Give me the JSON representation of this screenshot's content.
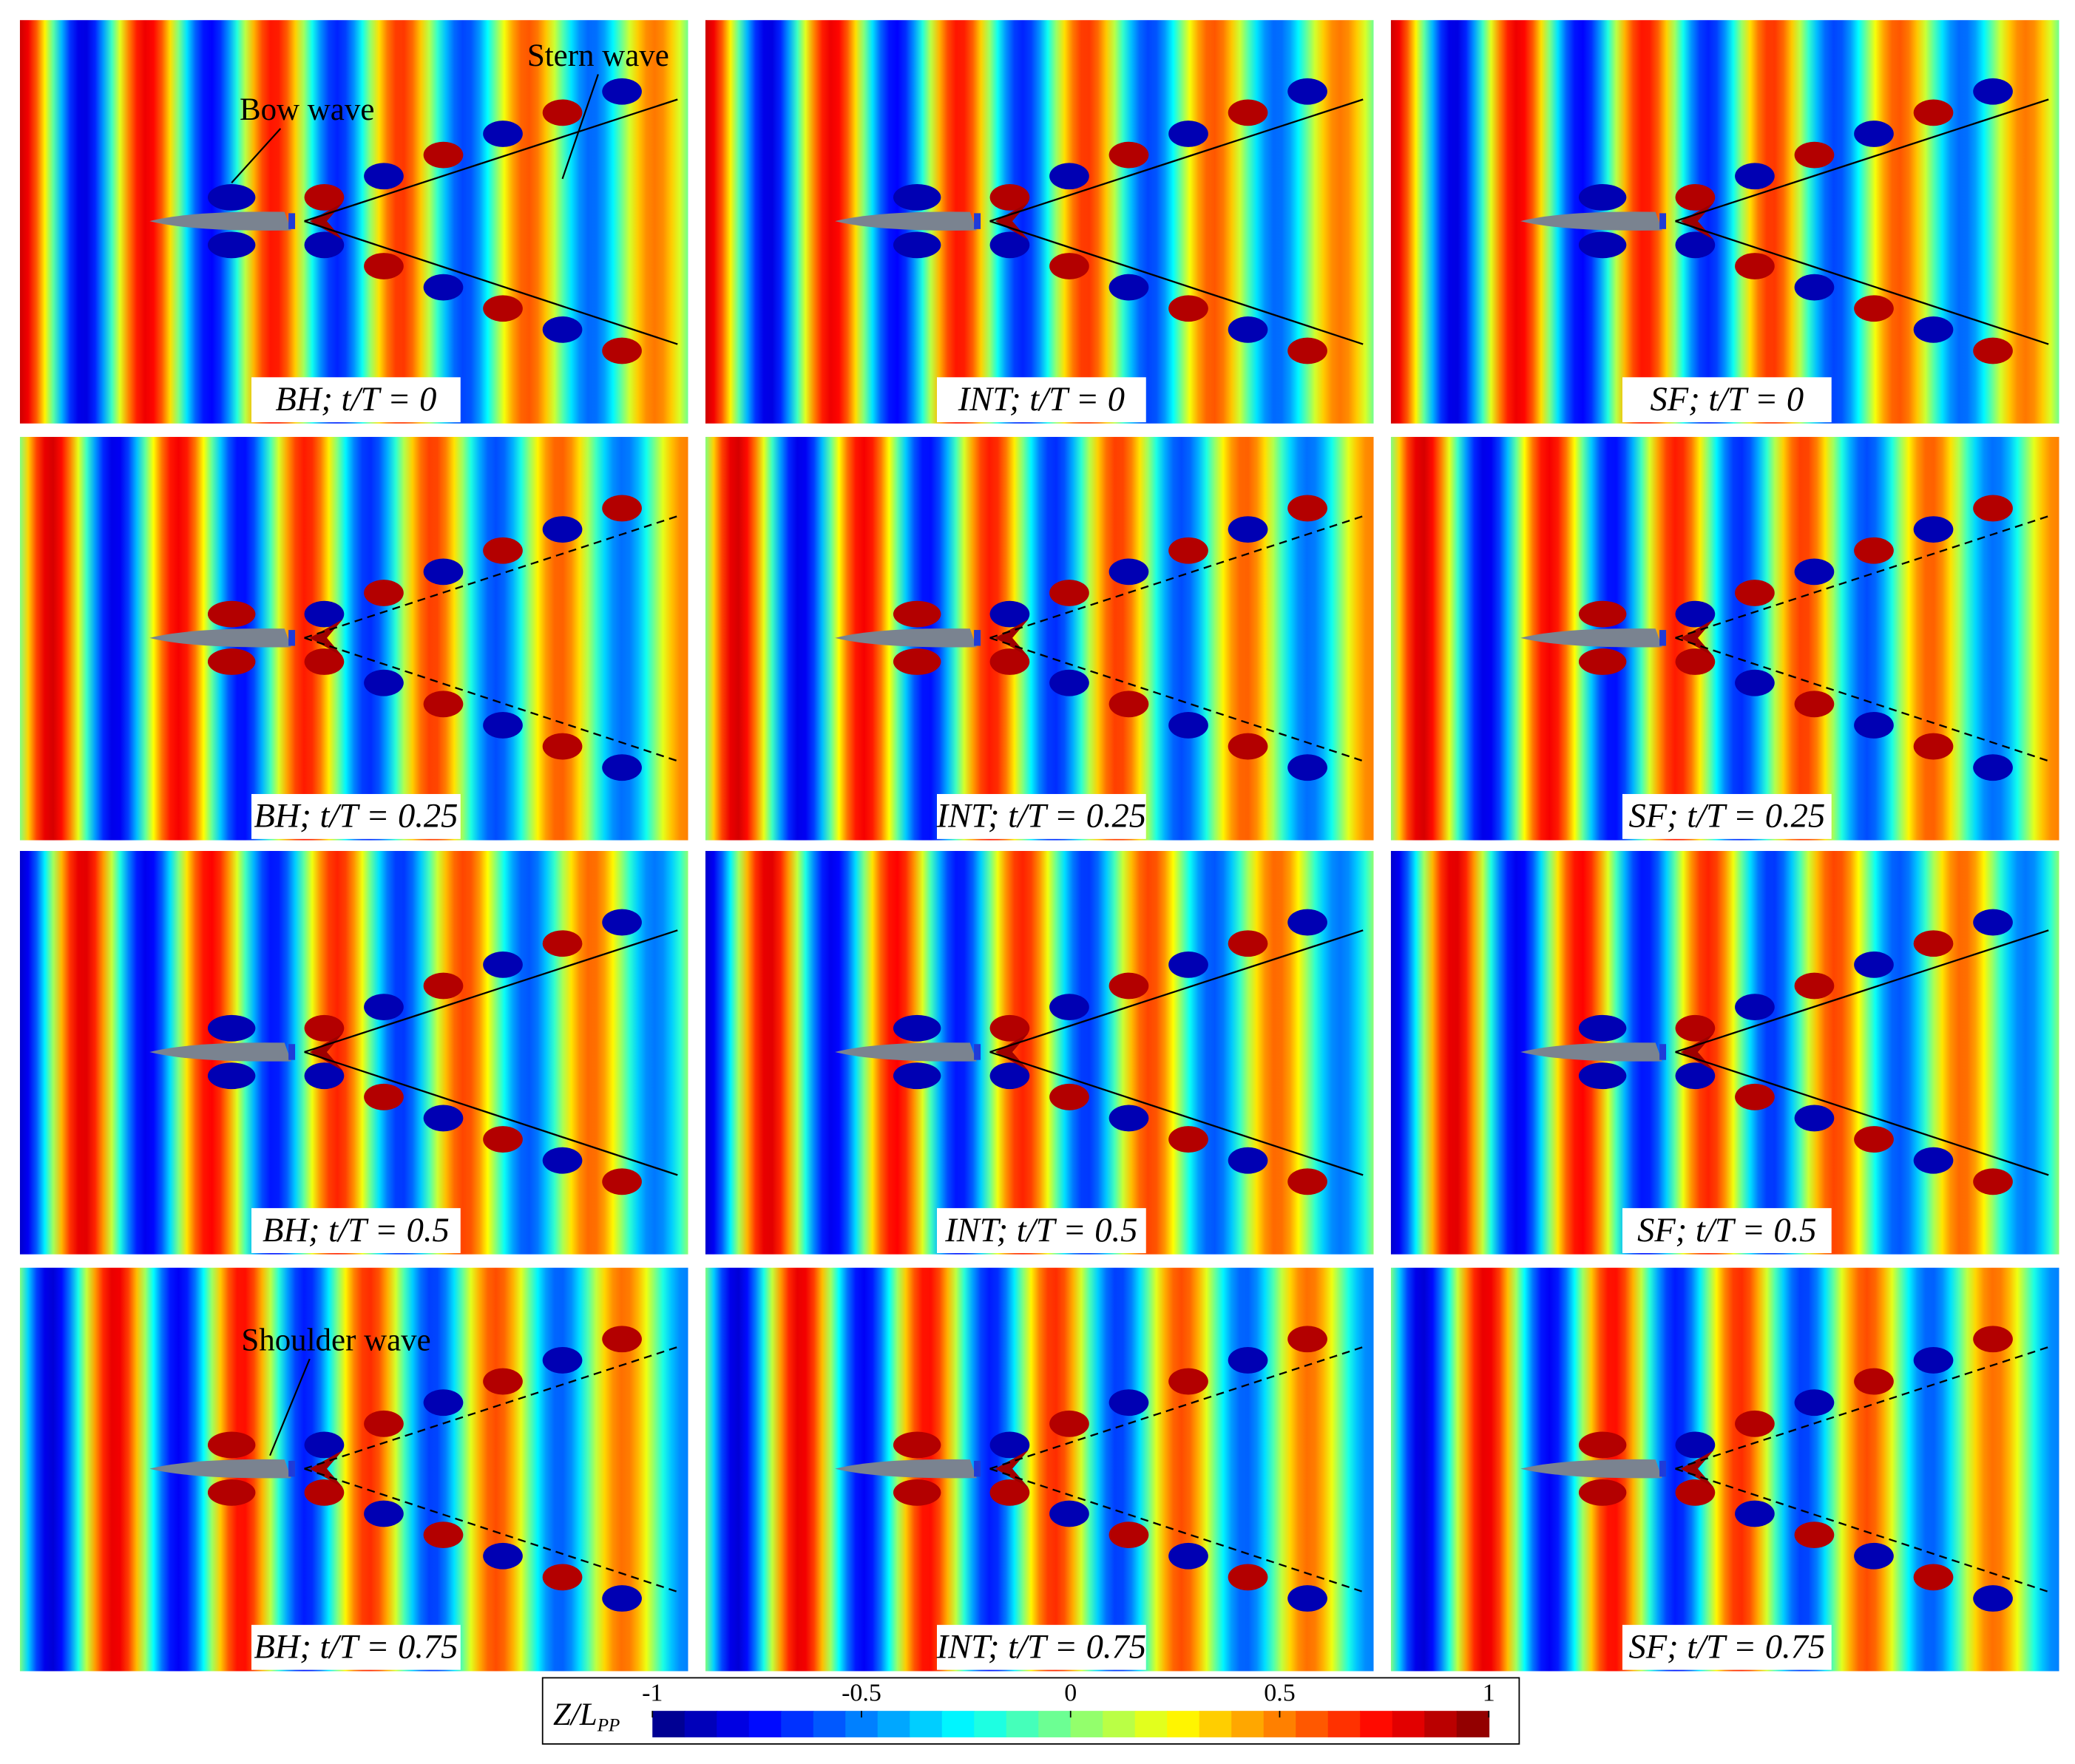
{
  "chart_data": {
    "type": "contour",
    "panels": [
      {
        "label": "BH; t/T = 0"
      },
      {
        "label": "INT; t/T = 0"
      },
      {
        "label": "SF; t/T = 0"
      },
      {
        "label": "BH; t/T = 0.25"
      },
      {
        "label": "INT; t/T = 0.25"
      },
      {
        "label": "SF; t/T = 0.25"
      },
      {
        "label": "BH; t/T = 0.5"
      },
      {
        "label": "INT; t/T = 0.5"
      },
      {
        "label": "SF; t/T = 0.5"
      },
      {
        "label": "BH; t/T = 0.75"
      },
      {
        "label": "INT; t/T = 0.75"
      },
      {
        "label": "SF; t/T = 0.75"
      }
    ],
    "annotations": [
      "Bow wave",
      "Stern wave",
      "Shoulder wave"
    ],
    "colorbar": {
      "label": "Z/L",
      "label_subscript": "PP",
      "colormap": "jet",
      "lim": [
        -1,
        1
      ],
      "ticks": [
        -1,
        -0.5,
        0,
        0.5,
        1
      ]
    }
  }
}
